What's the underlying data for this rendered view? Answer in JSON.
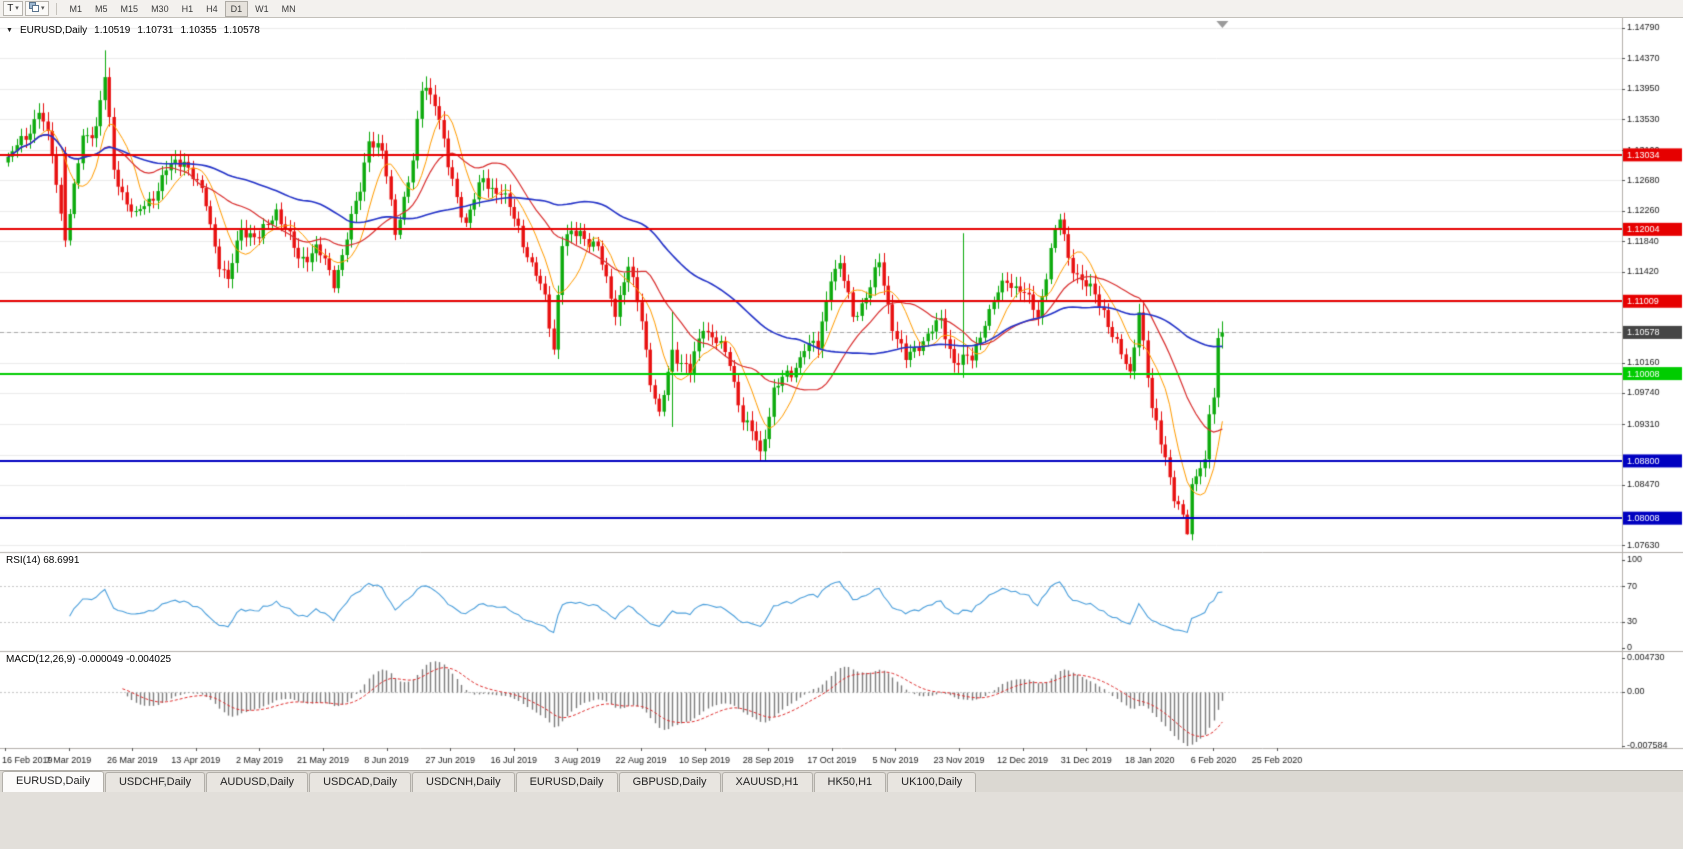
{
  "icons": {
    "chart_menu": "▼",
    "caret_down": "▾"
  },
  "toolbar": {
    "t_button_label": "T",
    "timeframes": [
      "M1",
      "M5",
      "M15",
      "M30",
      "H1",
      "H4",
      "D1",
      "W1",
      "MN"
    ],
    "active_timeframe": "D1"
  },
  "chart_title": {
    "symbol": "EURUSD,Daily",
    "open": "1.10519",
    "high": "1.10731",
    "low": "1.10355",
    "close": "1.10578"
  },
  "chart_data": {
    "type": "candlestick",
    "symbol": "EURUSD",
    "timeframe": "Daily",
    "price_axis": {
      "plot_max": 1.149,
      "plot_min": 1.0754,
      "grid_prices": [
        1.1479,
        1.1437,
        1.1395,
        1.1353,
        1.131,
        1.1268,
        1.1226,
        1.1184,
        1.1142,
        1.11,
        1.1058,
        1.1016,
        1.0974,
        1.0931,
        1.0888,
        1.0847,
        1.0805,
        1.0763
      ],
      "labels": [
        {
          "text": "1.14790",
          "price": 1.1479
        },
        {
          "text": "1.14370",
          "price": 1.1437
        },
        {
          "text": "1.13950",
          "price": 1.1395
        },
        {
          "text": "1.13530",
          "price": 1.1353
        },
        {
          "text": "1.13100",
          "price": 1.131
        },
        {
          "text": "1.12680",
          "price": 1.1268
        },
        {
          "text": "1.12260",
          "price": 1.1226
        },
        {
          "text": "1.11840",
          "price": 1.1184
        },
        {
          "text": "1.11420",
          "price": 1.1142
        },
        {
          "text": "1.10160",
          "price": 1.1016
        },
        {
          "text": "1.09740",
          "price": 1.0974
        },
        {
          "text": "1.09310",
          "price": 1.0931
        },
        {
          "text": "1.08470",
          "price": 1.0847
        },
        {
          "text": "1.07630",
          "price": 1.0763
        }
      ]
    },
    "date_labels": [
      "16 Feb 2019",
      "7 Mar 2019",
      "26 Mar 2019",
      "13 Apr 2019",
      "2 May 2019",
      "21 May 2019",
      "8 Jun 2019",
      "27 Jun 2019",
      "16 Jul 2019",
      "3 Aug 2019",
      "22 Aug 2019",
      "10 Sep 2019",
      "28 Sep 2019",
      "17 Oct 2019",
      "5 Nov 2019",
      "23 Nov 2019",
      "12 Dec 2019",
      "31 Dec 2019",
      "18 Jan 2020",
      "6 Feb 2020",
      "25 Feb 2020"
    ],
    "candles": {
      "count": 277,
      "anchors": [
        [
          0,
          1.1296
        ],
        [
          4,
          1.133
        ],
        [
          7,
          1.1365
        ],
        [
          10,
          1.1305
        ],
        [
          13,
          1.1185
        ],
        [
          17,
          1.1325
        ],
        [
          20,
          1.1345
        ],
        [
          22,
          1.141
        ],
        [
          24,
          1.128
        ],
        [
          29,
          1.1215
        ],
        [
          33,
          1.125
        ],
        [
          36,
          1.128
        ],
        [
          40,
          1.13
        ],
        [
          45,
          1.1235
        ],
        [
          48,
          1.1155
        ],
        [
          50,
          1.1125
        ],
        [
          53,
          1.1205
        ],
        [
          57,
          1.1185
        ],
        [
          61,
          1.123
        ],
        [
          66,
          1.1158
        ],
        [
          70,
          1.1175
        ],
        [
          74,
          1.1128
        ],
        [
          76,
          1.1168
        ],
        [
          80,
          1.1255
        ],
        [
          82,
          1.133
        ],
        [
          85,
          1.1305
        ],
        [
          88,
          1.12
        ],
        [
          92,
          1.129
        ],
        [
          94,
          1.1395
        ],
        [
          95,
          1.14
        ],
        [
          97,
          1.138
        ],
        [
          100,
          1.1285
        ],
        [
          104,
          1.121
        ],
        [
          108,
          1.127
        ],
        [
          112,
          1.125
        ],
        [
          116,
          1.1205
        ],
        [
          119,
          1.1148
        ],
        [
          122,
          1.1105
        ],
        [
          124,
          1.104
        ],
        [
          126,
          1.118
        ],
        [
          130,
          1.12
        ],
        [
          134,
          1.117
        ],
        [
          138,
          1.109
        ],
        [
          141,
          1.1145
        ],
        [
          144,
          1.108
        ],
        [
          146,
          1.0992
        ],
        [
          148,
          1.0937
        ],
        [
          151,
          1.1035
        ],
        [
          155,
          1.1
        ],
        [
          158,
          1.107
        ],
        [
          161,
          1.1045
        ],
        [
          164,
          1.1015
        ],
        [
          167,
          1.094
        ],
        [
          170,
          1.0905
        ],
        [
          171,
          1.0888
        ],
        [
          174,
          1.098
        ],
        [
          178,
          1.1
        ],
        [
          181,
          1.104
        ],
        [
          184,
          1.1035
        ],
        [
          187,
          1.114
        ],
        [
          189,
          1.115
        ],
        [
          192,
          1.108
        ],
        [
          196,
          1.112
        ],
        [
          198,
          1.1152
        ],
        [
          201,
          1.107
        ],
        [
          204,
          1.1017
        ],
        [
          208,
          1.1051
        ],
        [
          212,
          1.107
        ],
        [
          215,
          1.1021
        ],
        [
          219,
          1.1018
        ],
        [
          222,
          1.1077
        ],
        [
          227,
          1.113
        ],
        [
          230,
          1.112
        ],
        [
          234,
          1.1078
        ],
        [
          237,
          1.1175
        ],
        [
          239,
          1.1212
        ],
        [
          241,
          1.116
        ],
        [
          245,
          1.1122
        ],
        [
          249,
          1.109
        ],
        [
          253,
          1.1023
        ],
        [
          255,
          1.1
        ],
        [
          257,
          1.1093
        ],
        [
          260,
          1.0946
        ],
        [
          263,
          1.089
        ],
        [
          265,
          1.0831
        ],
        [
          268,
          1.0779
        ],
        [
          269,
          1.0846
        ],
        [
          271,
          1.0881
        ],
        [
          272,
          1.088
        ],
        [
          273,
          1.094
        ],
        [
          274,
          1.0965
        ],
        [
          275,
          1.105
        ],
        [
          276,
          1.10578
        ]
      ],
      "specials": {
        "13": {
          "o": 1.1306,
          "c": 1.1185,
          "l": 1.1176
        },
        "22": {
          "h": 1.1448
        },
        "95": {
          "h": 1.1412
        },
        "124": {
          "l": 1.1027
        },
        "151": {
          "l": 1.0927,
          "h": 1.1087
        },
        "171": {
          "l": 1.0879
        },
        "217": {
          "h": 1.1195,
          "l": 1.0995
        },
        "268": {
          "l": 1.0778
        },
        "275": {
          "c": 1.105
        },
        "276": {
          "o": 1.10519,
          "h": 1.10731,
          "l": 1.10355,
          "c": 1.10578
        }
      }
    },
    "moving_averages": [
      {
        "period": 8,
        "color": "#ff9c00",
        "width": 1
      },
      {
        "period": 21,
        "color": "#d93030",
        "width": 1.2
      },
      {
        "period": 55,
        "color": "#2433c8",
        "width": 1.6
      }
    ],
    "hlines": [
      {
        "price": 1.13034,
        "label": "1.13034",
        "color": "#e60000",
        "width": 2
      },
      {
        "price": 1.12004,
        "label": "1.12004",
        "color": "#e60000",
        "width": 2
      },
      {
        "price": 1.11009,
        "label": "1.11009",
        "color": "#e60000",
        "width": 2
      },
      {
        "price": 1.10008,
        "label": "1.10008",
        "color": "#00cc00",
        "width": 2
      },
      {
        "price": 1.088,
        "label": "1.08800",
        "color": "#0000c0",
        "width": 2
      },
      {
        "price": 1.08008,
        "label": "1.08008",
        "color": "#0000c0",
        "width": 2
      }
    ],
    "current_price": {
      "price": 1.10578,
      "label": "1.10578",
      "box_color": "#454545",
      "line_color": "#a8a8a8"
    },
    "colors": {
      "up": "#0caa0c",
      "down": "#e81010",
      "grid": "#ececec",
      "axis_text": "#1a1a1a",
      "separator": "#b3b0ab",
      "background": "#ffffff",
      "shift_marker": "#9a9a9a"
    },
    "rsi": {
      "label": "RSI(14) 68.6991",
      "period": 14,
      "current_value": "68.6991",
      "line_color": "#4da0dc",
      "axis_labels": [
        {
          "text": "100",
          "value": 100
        },
        {
          "text": "70",
          "value": 70
        },
        {
          "text": "30",
          "value": 30
        },
        {
          "text": "0",
          "value": 0
        }
      ],
      "dotted_levels": [
        70,
        30
      ]
    },
    "macd": {
      "label": "MACD(12,26,9) -0.000049 -0.004025",
      "fast": 12,
      "slow": 26,
      "signal_period": 9,
      "current_values": "-0.000049 -0.004025",
      "scale_max": 0.00473,
      "scale_min": -0.007584,
      "axis_labels": [
        {
          "text": "0.004730",
          "value": 0.00473
        },
        {
          "text": "0.00",
          "value": 0
        },
        {
          "text": "-0.007584",
          "value": -0.007584
        }
      ],
      "histogram_color": "#7d7d7d",
      "signal_color": "#e03030"
    }
  },
  "tabs": [
    {
      "label": "EURUSD,Daily",
      "active": true
    },
    {
      "label": "USDCHF,Daily"
    },
    {
      "label": "AUDUSD,Daily"
    },
    {
      "label": "USDCAD,Daily"
    },
    {
      "label": "USDCNH,Daily"
    },
    {
      "label": "EURUSD,Daily"
    },
    {
      "label": "GBPUSD,Daily"
    },
    {
      "label": "XAUUSD,H1"
    },
    {
      "label": "HK50,H1"
    },
    {
      "label": "UK100,Daily"
    }
  ]
}
